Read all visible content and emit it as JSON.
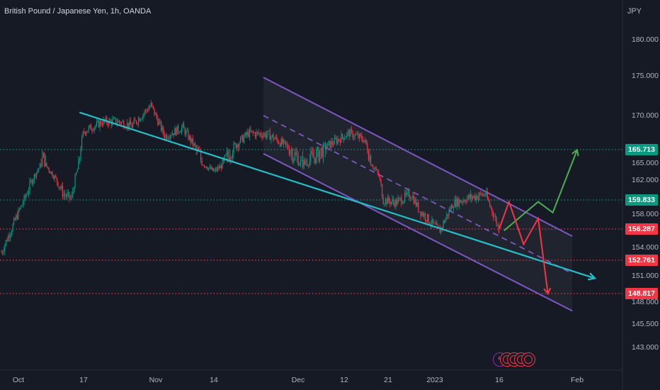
{
  "header": {
    "symbol_title": "British Pound / Japanese Yen, 1h, OANDA",
    "currency": "JPY"
  },
  "y_axis": {
    "ticks": [
      "180.000",
      "175.000",
      "170.000",
      "165.000",
      "162.000",
      "158.000",
      "154.000",
      "151.000",
      "148.000",
      "145.500",
      "143.000"
    ]
  },
  "x_axis": {
    "ticks": [
      "Oct",
      "17",
      "Nov",
      "14",
      "Dec",
      "12",
      "21",
      "2023",
      "16",
      "Feb"
    ]
  },
  "price_tags": [
    {
      "label": "165.713",
      "color": "#089981"
    },
    {
      "label": "159.833",
      "color": "#089981"
    },
    {
      "label": "156.287",
      "color": "#f23645"
    },
    {
      "label": "152.761",
      "color": "#f23645"
    },
    {
      "label": "148.817",
      "color": "#f23645"
    }
  ],
  "events": {
    "icon_names": [
      "lightning-icon",
      "economic-event-icon",
      "economic-event-icon",
      "economic-event-icon",
      "economic-event-icon"
    ],
    "lightning_glyph": "ϟ"
  },
  "colors": {
    "background": "#161a25",
    "bull": "#089981",
    "bear": "#f23645",
    "channel": "#7e57c2",
    "trendline": "#22c0c9",
    "up_scenario": "#4caf50",
    "down_scenario": "#f23645"
  },
  "chart_data": {
    "type": "candlestick",
    "symbol": "British Pound / Japanese Yen",
    "interval": "1h",
    "source": "OANDA",
    "price_axis_ticks": [
      180,
      175,
      170,
      165,
      162,
      158,
      154,
      151,
      148,
      145.5,
      143
    ],
    "path_keypoints": [
      {
        "x": "Sep 28",
        "price": 153.5
      },
      {
        "x": "Oct 3",
        "price": 160.5
      },
      {
        "x": "Oct 7",
        "price": 165.3
      },
      {
        "x": "Oct 12",
        "price": 160.5
      },
      {
        "x": "Oct 14",
        "price": 159.9
      },
      {
        "x": "Oct 17",
        "price": 168.0
      },
      {
        "x": "Oct 21",
        "price": 169.2
      },
      {
        "x": "Oct 24",
        "price": 169.3
      },
      {
        "x": "Oct 27",
        "price": 168.7
      },
      {
        "x": "Oct 31",
        "price": 171.3
      },
      {
        "x": "Nov 3",
        "price": 167.4
      },
      {
        "x": "Nov 7",
        "price": 168.5
      },
      {
        "x": "Nov 10",
        "price": 165.8
      },
      {
        "x": "Nov 14",
        "price": 163.5
      },
      {
        "x": "Nov 17",
        "price": 165.5
      },
      {
        "x": "Nov 21",
        "price": 167.8
      },
      {
        "x": "Nov 25",
        "price": 167.6
      },
      {
        "x": "Nov 29",
        "price": 166.0
      },
      {
        "x": "Dec 2",
        "price": 164.7
      },
      {
        "x": "Dec 6",
        "price": 165.6
      },
      {
        "x": "Dec 9",
        "price": 166.5
      },
      {
        "x": "Dec 13",
        "price": 167.8
      },
      {
        "x": "Dec 16",
        "price": 167.0
      },
      {
        "x": "Dec 19",
        "price": 163.0
      },
      {
        "x": "Dec 20",
        "price": 159.8
      },
      {
        "x": "Dec 23",
        "price": 159.5
      },
      {
        "x": "Dec 27",
        "price": 160.5
      },
      {
        "x": "Dec 29",
        "price": 158.5
      },
      {
        "x": "Jan 3",
        "price": 156.0
      },
      {
        "x": "Jan 6",
        "price": 159.4
      },
      {
        "x": "Jan 9",
        "price": 160.0
      },
      {
        "x": "Jan 13",
        "price": 160.5
      },
      {
        "x": "Jan 16",
        "price": 156.2
      }
    ],
    "horizontal_levels": [
      {
        "price": 165.713,
        "style": "dotted",
        "color": "#089981"
      },
      {
        "price": 159.833,
        "style": "dotted",
        "color": "#089981"
      },
      {
        "price": 156.287,
        "style": "dotted",
        "color": "#f23645"
      },
      {
        "price": 152.761,
        "style": "dotted",
        "color": "#f23645"
      },
      {
        "price": 148.817,
        "style": "dotted",
        "color": "#f23645"
      }
    ],
    "drawings": {
      "descending_channel": {
        "upper": [
          {
            "x": "Nov 24",
            "price": 174.8
          },
          {
            "x": "Jan 31",
            "price": 155.4
          }
        ],
        "lower": [
          {
            "x": "Nov 24",
            "price": 165.5
          },
          {
            "x": "Jan 31",
            "price": 147.0
          }
        ],
        "midline_dashed": true
      },
      "trendline": [
        {
          "x": "Oct 16",
          "price": 170.4
        },
        {
          "x": "Feb 2",
          "price": 150.7
        }
      ],
      "up_scenario": [
        {
          "x": "Jan 17",
          "price": 156.1
        },
        {
          "x": "Jan 24",
          "price": 159.6
        },
        {
          "x": "Jan 27",
          "price": 158.2
        },
        {
          "x": "Feb 1",
          "price": 165.7
        }
      ],
      "down_scenario": [
        {
          "x": "Jan 16",
          "price": 156.3
        },
        {
          "x": "Jan 18",
          "price": 159.6
        },
        {
          "x": "Jan 21",
          "price": 154.4
        },
        {
          "x": "Jan 24",
          "price": 157.5
        },
        {
          "x": "Jan 26",
          "price": 148.8
        }
      ]
    }
  }
}
